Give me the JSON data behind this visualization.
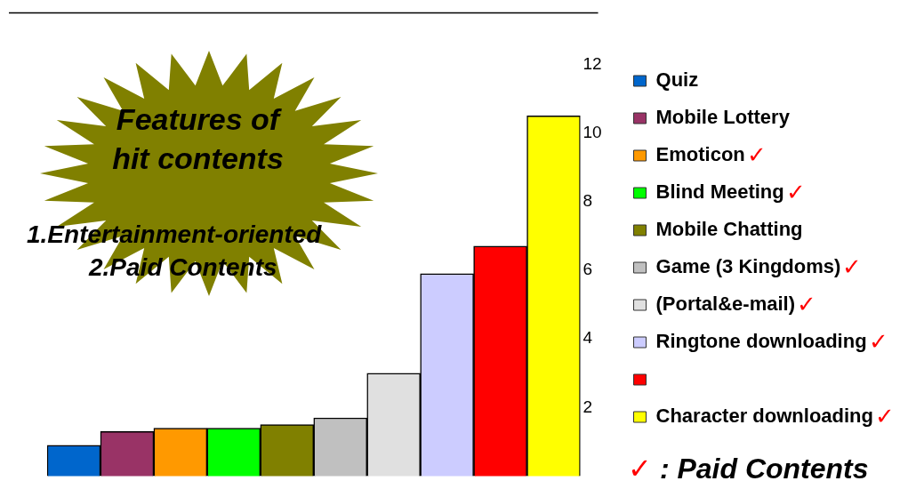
{
  "chart_data": {
    "type": "bar",
    "categories": [
      null,
      null,
      null,
      null,
      null,
      null,
      null,
      null,
      null,
      null
    ],
    "series": [
      {
        "name": "Quiz",
        "color": "#0066cc",
        "values": [
          0.9,
          null,
          null,
          null,
          null,
          null,
          null,
          null,
          null,
          null
        ]
      },
      {
        "name": "Mobile Lottery",
        "color": "#993366",
        "values": [
          null,
          1.3,
          null,
          null,
          null,
          null,
          null,
          null,
          null,
          null
        ]
      },
      {
        "name": "Emoticon",
        "color": "#ff9900",
        "values": [
          null,
          null,
          1.4,
          null,
          null,
          null,
          null,
          null,
          null,
          null
        ]
      },
      {
        "name": "Blind Meeting",
        "color": "#00ff00",
        "values": [
          null,
          null,
          null,
          1.4,
          null,
          null,
          null,
          null,
          null,
          null
        ]
      },
      {
        "name": "Mobile Chatting",
        "color": "#808000",
        "values": [
          null,
          null,
          null,
          null,
          1.5,
          null,
          null,
          null,
          null,
          null
        ]
      },
      {
        "name": "Game (3 Kingdoms)",
        "color": "#c0c0c0",
        "values": [
          null,
          null,
          null,
          null,
          null,
          1.7,
          null,
          null,
          null,
          null
        ]
      },
      {
        "name": "(Portal&e-mail)",
        "color": "#e0e0e0",
        "values": [
          null,
          null,
          null,
          null,
          null,
          null,
          3.0,
          null,
          null,
          null
        ]
      },
      {
        "name": "Ringtone downloading",
        "color": "#ccccff",
        "values": [
          null,
          null,
          null,
          null,
          null,
          null,
          null,
          5.9,
          null,
          null
        ]
      },
      {
        "color": "#ff0000",
        "values": [
          null,
          null,
          null,
          null,
          null,
          null,
          null,
          null,
          6.7,
          null
        ]
      },
      {
        "name": "Character downloading",
        "color": "#ffff00",
        "values": [
          null,
          null,
          null,
          null,
          null,
          null,
          null,
          null,
          null,
          10.5
        ]
      }
    ],
    "ylim": [
      0,
      13.5
    ],
    "yticks": [
      2,
      4,
      6,
      8,
      10,
      12
    ],
    "tick_labels": "y",
    "grid": false,
    "stacked": true,
    "legend": "right",
    "annotations": [
      "Features of hit contents",
      "1.Entertainment-oriented",
      "2.Paid Contents",
      "✓ : Paid Contents",
      "✓",
      "✓",
      "✓",
      "✓",
      "✓",
      "✓"
    ]
  }
}
